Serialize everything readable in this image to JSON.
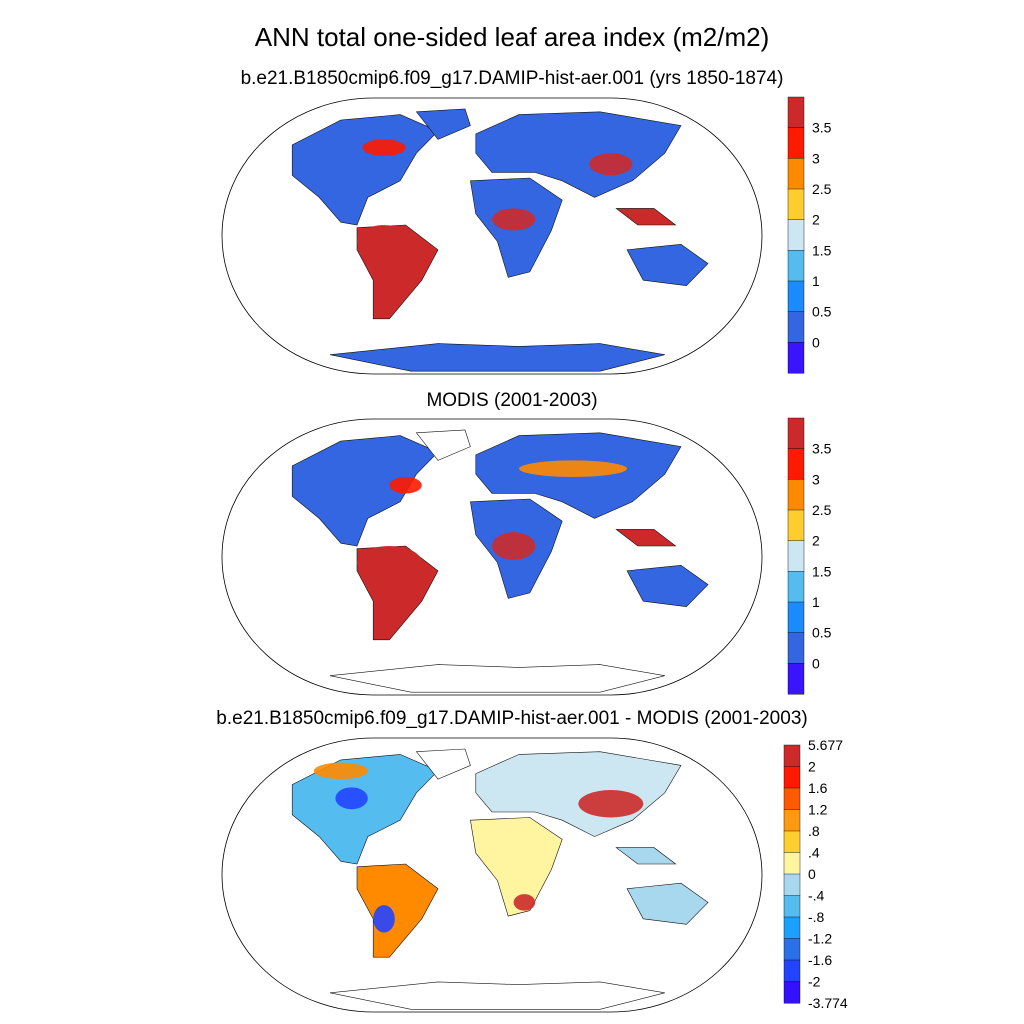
{
  "title": "ANN total one-sided leaf area index (m2/m2)",
  "colors": {
    "ocean": "#ffffff",
    "outline": "#000000",
    "coast": "#111111"
  },
  "panels": [
    {
      "id": "model",
      "subtitle": "b.e21.B1850cmip6.f09_g17.DAMIP-hist-aer.001 (yrs 1850-1874)",
      "colorbar": {
        "labels": [
          "3.5",
          "3",
          "2.5",
          "2",
          "1.5",
          "1",
          "0.5",
          "0"
        ],
        "colors": [
          "#cc2a2a",
          "#ff1a00",
          "#ff8a00",
          "#ffce2e",
          "#cce6f2",
          "#55bcf0",
          "#1a8cff",
          "#3366e0",
          "#3a14ff"
        ]
      }
    },
    {
      "id": "obs",
      "subtitle": "MODIS (2001-2003)",
      "colorbar": {
        "labels": [
          "3.5",
          "3",
          "2.5",
          "2",
          "1.5",
          "1",
          "0.5",
          "0"
        ],
        "colors": [
          "#cc2a2a",
          "#ff1a00",
          "#ff8a00",
          "#ffce2e",
          "#cce6f2",
          "#55bcf0",
          "#1a8cff",
          "#3366e0",
          "#3a14ff"
        ]
      }
    },
    {
      "id": "diff",
      "subtitle": "b.e21.B1850cmip6.f09_g17.DAMIP-hist-aer.001 - MODIS (2001-2003)",
      "colorbar": {
        "labels": [
          "5.677",
          "2",
          "1.6",
          "1.2",
          ".8",
          ".4",
          "0",
          "-.4",
          "-.8",
          "-1.2",
          "-1.6",
          "-2",
          "-3.774"
        ],
        "colors": [
          "#cc2a2a",
          "#ff1a00",
          "#ff5a00",
          "#ff9a10",
          "#ffcf30",
          "#fff5a0",
          "#a8d8ee",
          "#55bcf0",
          "#1aa0ff",
          "#2a70e8",
          "#2244ff",
          "#3311ff"
        ]
      }
    }
  ]
}
